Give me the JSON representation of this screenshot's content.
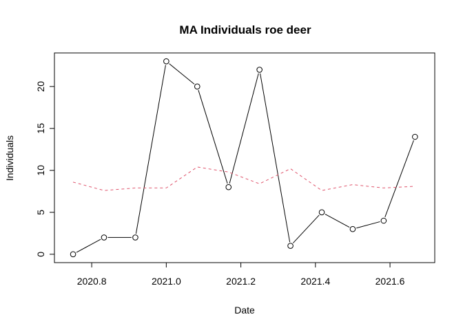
{
  "chart_data": {
    "type": "line",
    "title": "MA Individuals roe deer",
    "xlabel": "Date",
    "ylabel": "Individuals",
    "xlim": [
      2020.7,
      2021.72
    ],
    "ylim": [
      -1,
      24
    ],
    "xticks": [
      2020.8,
      2021.0,
      2021.2,
      2021.4,
      2021.6
    ],
    "xtick_labels": [
      "2020.8",
      "2021.0",
      "2021.2",
      "2021.4",
      "2021.6"
    ],
    "yticks": [
      0,
      5,
      10,
      15,
      20
    ],
    "ytick_labels": [
      "0",
      "5",
      "10",
      "15",
      "20"
    ],
    "grid": false,
    "x": [
      2020.75,
      2020.833,
      2020.917,
      2021.0,
      2021.083,
      2021.167,
      2021.25,
      2021.333,
      2021.417,
      2021.5,
      2021.583,
      2021.667
    ],
    "series": [
      {
        "style": "points-and-lines",
        "color": "#000000",
        "values": [
          0,
          2,
          2,
          23,
          20,
          8,
          22,
          1,
          5,
          3,
          4,
          14
        ]
      },
      {
        "style": "dashed",
        "color": "#df536b",
        "values": [
          8.6,
          7.6,
          7.9,
          7.9,
          10.4,
          9.8,
          8.4,
          10.2,
          7.6,
          8.3,
          7.9,
          8.1
        ]
      }
    ]
  }
}
